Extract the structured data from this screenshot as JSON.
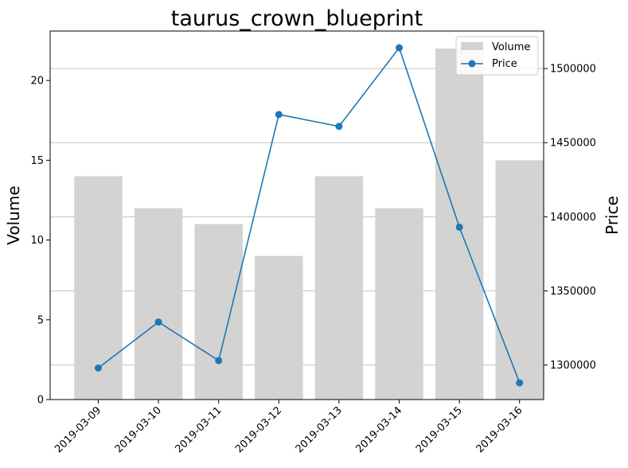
{
  "chart_data": {
    "type": "bar",
    "title": "taurus_crown_blueprint",
    "xlabel": "",
    "categories": [
      "2019-03-09",
      "2019-03-10",
      "2019-03-11",
      "2019-03-12",
      "2019-03-13",
      "2019-03-14",
      "2019-03-15",
      "2019-03-16"
    ],
    "series": [
      {
        "name": "Volume",
        "type": "bar",
        "axis": "left",
        "color": "#d3d3d3",
        "values": [
          14,
          12,
          11,
          9,
          14,
          12,
          22,
          15
        ]
      },
      {
        "name": "Price",
        "type": "line",
        "axis": "right",
        "color": "#1f77b4",
        "values": [
          1298000,
          1329000,
          1303000,
          1469000,
          1461000,
          1514000,
          1393000,
          1288000
        ]
      }
    ],
    "y_left": {
      "label": "Volume",
      "ylim": [
        0,
        23.1
      ],
      "ticks": [
        0,
        5,
        10,
        15,
        20
      ]
    },
    "y_right": {
      "label": "Price",
      "ylim": [
        1276700,
        1525300
      ],
      "ticks": [
        1300000,
        1350000,
        1400000,
        1450000,
        1500000
      ],
      "grid": true
    },
    "legend": {
      "position": "top-right",
      "entries": [
        "Volume",
        "Price"
      ]
    }
  }
}
